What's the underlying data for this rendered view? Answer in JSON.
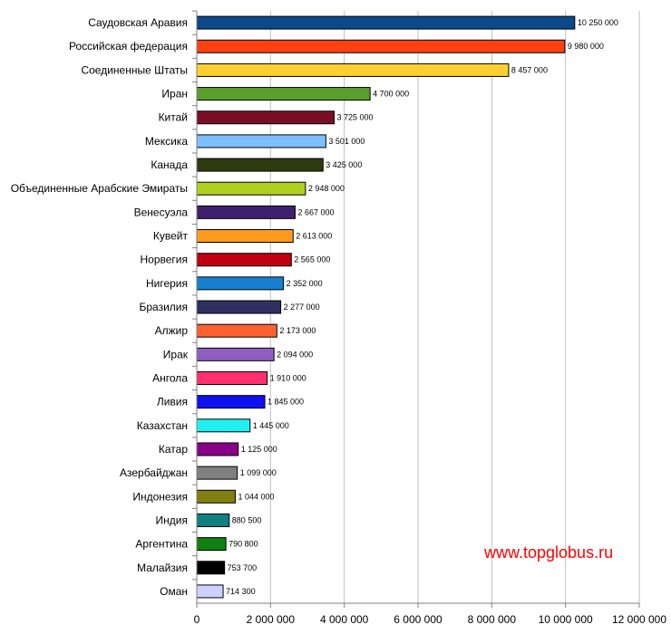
{
  "watermark": "www.topglobus.ru",
  "chart_data": {
    "type": "bar",
    "orientation": "horizontal",
    "grid": true,
    "xlim": [
      0,
      12000000
    ],
    "xticks": [
      0,
      2000000,
      4000000,
      6000000,
      8000000,
      10000000,
      12000000
    ],
    "xtick_labels": [
      "0",
      "2 000 000",
      "4 000 000",
      "6 000 000",
      "8 000 000",
      "10 000 000",
      "12 000 000"
    ],
    "categories": [
      "Саудовская Аравия",
      "Российская федерация",
      "Соединенные Штаты",
      "Иран",
      "Китай",
      "Мексика",
      "Канада",
      "Объединенные Арабские Эмираты",
      "Венесуэла",
      "Кувейт",
      "Норвегия",
      "Нигерия",
      "Бразилия",
      "Алжир",
      "Ирак",
      "Ангола",
      "Ливия",
      "Казахстан",
      "Катар",
      "Азербайджан",
      "Индонезия",
      "Индия",
      "Аргентина",
      "Малайзия",
      "Оман"
    ],
    "values": [
      10250000,
      9980000,
      8457000,
      4700000,
      3725000,
      3501000,
      3425000,
      2948000,
      2667000,
      2613000,
      2565000,
      2352000,
      2277000,
      2173000,
      2094000,
      1910000,
      1845000,
      1445000,
      1125000,
      1099000,
      1044000,
      880500,
      790800,
      753700,
      714300
    ],
    "value_labels": [
      "10 250 000",
      "9 980 000",
      "8 457 000",
      "4 700 000",
      "3 725 000",
      "3 501 000",
      "3 425 000",
      "2 948 000",
      "2 667 000",
      "2 613 000",
      "2 565 000",
      "2 352 000",
      "2 277 000",
      "2 173 000",
      "2 094 000",
      "1 910 000",
      "1 845 000",
      "1 445 000",
      "1 125 000",
      "1 099 000",
      "1 044 000",
      "880 500",
      "790 800",
      "753 700",
      "714 300"
    ],
    "colors": [
      "#0a4a8a",
      "#ff4010",
      "#ffd030",
      "#5a9e2e",
      "#7a0e25",
      "#7ec0ff",
      "#2e3a10",
      "#b0d020",
      "#40206e",
      "#ff9a20",
      "#c00010",
      "#1880d0",
      "#303060",
      "#ff6030",
      "#9060c0",
      "#ff3070",
      "#1010f0",
      "#20f0f0",
      "#880088",
      "#808080",
      "#808010",
      "#108080",
      "#108010",
      "#000000",
      "#d0d0ff"
    ]
  }
}
